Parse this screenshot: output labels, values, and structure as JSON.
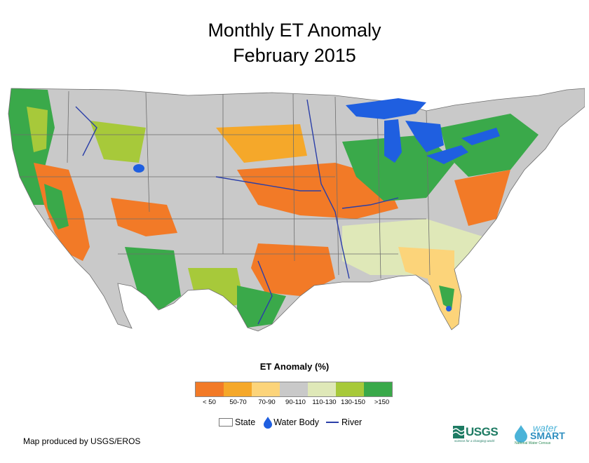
{
  "title": {
    "line1": "Monthly ET Anomaly",
    "line2": "February 2015"
  },
  "legend": {
    "title": "ET Anomaly (%)",
    "classes": [
      {
        "label": "< 50",
        "color": "#f27a27"
      },
      {
        "label": "50-70",
        "color": "#f5a82a"
      },
      {
        "label": "70-90",
        "color": "#fcd47a"
      },
      {
        "label": "90-110",
        "color": "#c9c9c9"
      },
      {
        "label": "110-130",
        "color": "#dfe8b8"
      },
      {
        "label": "130-150",
        "color": "#a7c93a"
      },
      {
        "label": ">150",
        "color": "#3aa94a"
      }
    ],
    "keys": {
      "state": "State",
      "water_body": "Water Body",
      "river": "River"
    }
  },
  "credit": "Map produced by USGS/EROS",
  "logos": {
    "usgs": "USGS",
    "usgs_tagline": "science for a changing world",
    "watersmart_top": "water",
    "watersmart_mid": "SMART",
    "watersmart_bottom": "National Water Census"
  },
  "colors": {
    "water": "#1f5fe0",
    "river": "#2b3fa8",
    "state_border": "#6e6e6e"
  }
}
